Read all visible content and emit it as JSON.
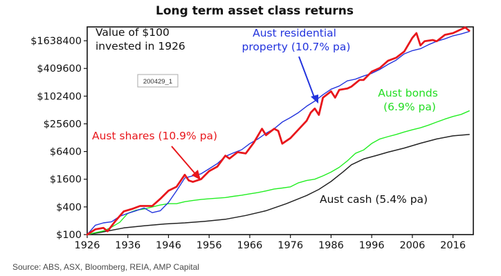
{
  "chart_data": {
    "type": "line",
    "title": "Long term asset class returns",
    "xlabel": "",
    "ylabel": "",
    "y_scale": "log2",
    "xlim": [
      1926,
      2021
    ],
    "ylim": [
      100,
      3276800
    ],
    "x_ticks": [
      1926,
      1936,
      1946,
      1956,
      1966,
      1976,
      1986,
      1996,
      2006,
      2016
    ],
    "y_ticks": [
      100,
      400,
      1600,
      6400,
      25600,
      102400,
      409600,
      1638400
    ],
    "y_tick_labels": [
      "$100",
      "$400",
      "$1600",
      "$6400",
      "$25600",
      "$102400",
      "$409600",
      "$1638400"
    ],
    "legend": "none",
    "grid": false,
    "colors": {
      "shares": "#e8171c",
      "property": "#2233dd",
      "bonds": "#22ee22",
      "cash": "#222222"
    },
    "series": [
      {
        "key": "shares",
        "name": "Aust shares (10.9% pa)",
        "x": [
          1926,
          1928,
          1930,
          1931,
          1933,
          1935,
          1937,
          1939,
          1942,
          1944,
          1946,
          1948,
          1950,
          1951,
          1952,
          1954,
          1956,
          1958,
          1960,
          1961,
          1963,
          1965,
          1967,
          1969,
          1970,
          1972,
          1973,
          1974,
          1976,
          1980,
          1981,
          1982,
          1983,
          1984,
          1986,
          1987,
          1988,
          1990,
          1991,
          1993,
          1994,
          1996,
          1998,
          2000,
          2002,
          2004,
          2006,
          2007,
          2008,
          2009,
          2011,
          2012,
          2014,
          2016,
          2018,
          2019,
          2020
        ],
        "y": [
          100,
          130,
          140,
          118,
          200,
          320,
          360,
          420,
          420,
          600,
          900,
          1100,
          2000,
          1500,
          1400,
          1600,
          2400,
          3000,
          5200,
          4500,
          6200,
          5800,
          10000,
          20000,
          14500,
          20000,
          18000,
          9500,
          12500,
          30000,
          45000,
          55000,
          40000,
          95000,
          130000,
          95000,
          140000,
          150000,
          165000,
          230000,
          230000,
          350000,
          420000,
          600000,
          700000,
          950000,
          1900000,
          2400000,
          1300000,
          1600000,
          1700000,
          1600000,
          2200000,
          2400000,
          2900000,
          3200000,
          2700000
        ]
      },
      {
        "key": "property",
        "name": "Aust residential property (10.7% pa)",
        "x": [
          1926,
          1928,
          1930,
          1932,
          1934,
          1936,
          1938,
          1940,
          1942,
          1944,
          1946,
          1948,
          1950,
          1952,
          1954,
          1956,
          1958,
          1960,
          1962,
          1964,
          1966,
          1968,
          1970,
          1972,
          1974,
          1976,
          1978,
          1980,
          1982,
          1984,
          1986,
          1988,
          1990,
          1992,
          1994,
          1996,
          1998,
          2000,
          2002,
          2004,
          2006,
          2008,
          2010,
          2012,
          2014,
          2016,
          2018,
          2020
        ],
        "y": [
          100,
          160,
          180,
          190,
          250,
          290,
          330,
          380,
          300,
          330,
          500,
          900,
          1700,
          1900,
          2100,
          2700,
          3500,
          5000,
          6000,
          7000,
          9500,
          12000,
          16000,
          20000,
          28000,
          35000,
          45000,
          62000,
          80000,
          110000,
          145000,
          170000,
          220000,
          240000,
          280000,
          320000,
          390000,
          500000,
          620000,
          850000,
          1000000,
          1100000,
          1350000,
          1600000,
          1800000,
          2100000,
          2300000,
          2600000
        ]
      },
      {
        "key": "bonds",
        "name": "Aust bonds (6.9% pa)",
        "x": [
          1926,
          1928,
          1930,
          1932,
          1934,
          1936,
          1938,
          1940,
          1942,
          1944,
          1946,
          1948,
          1950,
          1952,
          1954,
          1956,
          1958,
          1960,
          1962,
          1964,
          1966,
          1968,
          1970,
          1972,
          1974,
          1976,
          1978,
          1980,
          1982,
          1984,
          1986,
          1988,
          1990,
          1992,
          1994,
          1996,
          1998,
          2000,
          2002,
          2004,
          2006,
          2008,
          2010,
          2012,
          2014,
          2016,
          2018,
          2020
        ],
        "y": [
          100,
          110,
          120,
          145,
          185,
          290,
          340,
          360,
          400,
          440,
          470,
          470,
          520,
          550,
          580,
          600,
          620,
          640,
          680,
          720,
          770,
          820,
          890,
          980,
          1030,
          1090,
          1340,
          1500,
          1600,
          1890,
          2290,
          2900,
          4000,
          5850,
          6900,
          9600,
          12000,
          13500,
          15000,
          17000,
          19000,
          21000,
          24000,
          28000,
          32500,
          37000,
          41000,
          49000
        ]
      },
      {
        "key": "cash",
        "name": "Aust cash (5.4% pa)",
        "x": [
          1926,
          1930,
          1935,
          1940,
          1945,
          1950,
          1955,
          1960,
          1965,
          1970,
          1975,
          1980,
          1983,
          1986,
          1989,
          1991,
          1994,
          1997,
          2000,
          2004,
          2008,
          2012,
          2016,
          2020
        ],
        "y": [
          100,
          115,
          140,
          155,
          170,
          180,
          195,
          215,
          260,
          330,
          470,
          710,
          960,
          1430,
          2330,
          3300,
          4400,
          5200,
          6200,
          7600,
          9700,
          12000,
          14000,
          15000
        ]
      }
    ],
    "annotations": {
      "box_note": [
        "Value of $100",
        "invested in 1926"
      ],
      "property_label": [
        "Aust residential",
        "property (10.7% pa)"
      ],
      "bonds_label": [
        "Aust bonds",
        "(6.9% pa)"
      ],
      "shares_label": "Aust shares (10.9% pa)",
      "cash_label": "Aust cash (5.4% pa)",
      "stamp": "200429_1"
    }
  },
  "source": "Source: ABS, ASX, Bloomberg, REIA, AMP Capital"
}
